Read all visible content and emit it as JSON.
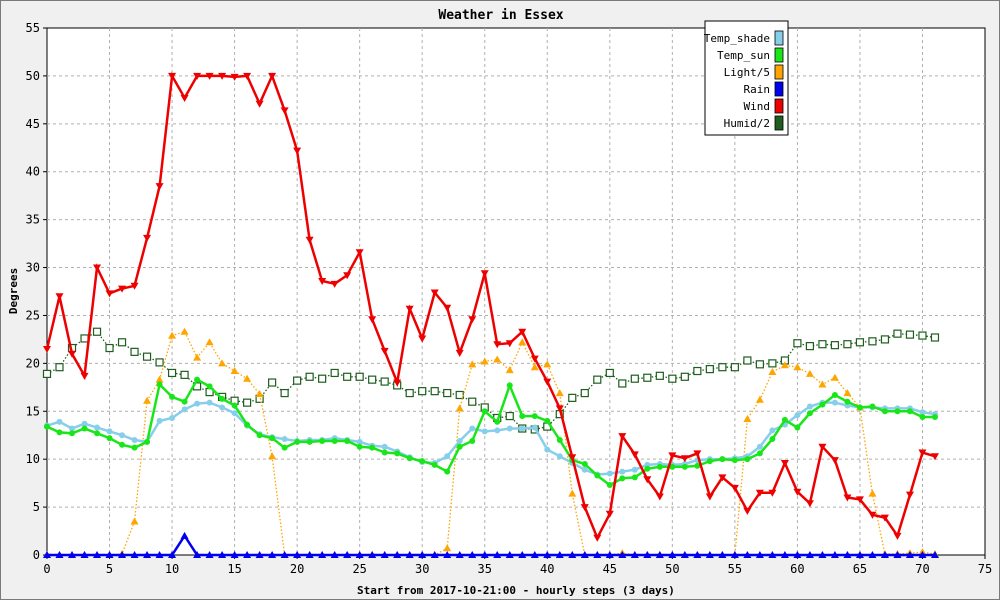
{
  "chart_data": {
    "type": "line",
    "title": "Weather in Essex",
    "xlabel": "Start from 2017-10-21:00 - hourly steps (3 days)",
    "ylabel": "Degrees",
    "xlim": [
      0,
      75
    ],
    "ylim": [
      0,
      55
    ],
    "xticks": [
      0,
      5,
      10,
      15,
      20,
      25,
      30,
      35,
      40,
      45,
      50,
      55,
      60,
      65,
      70,
      75
    ],
    "yticks": [
      0,
      5,
      10,
      15,
      20,
      25,
      30,
      35,
      40,
      45,
      50,
      55
    ],
    "grid": true,
    "legend_position": "top-right",
    "series": [
      {
        "name": "Temp_shade",
        "color": "#87ceeb",
        "marker": "circle",
        "line": "solid",
        "values": [
          13.5,
          13.9,
          13.2,
          13.7,
          13.3,
          12.9,
          12.5,
          12.0,
          11.8,
          14.0,
          14.3,
          15.2,
          15.8,
          15.9,
          15.4,
          14.8,
          13.5,
          12.6,
          12.3,
          12.1,
          11.9,
          12.0,
          12.0,
          12.2,
          12.0,
          11.8,
          11.4,
          11.3,
          10.8,
          10.2,
          9.7,
          9.6,
          10.3,
          11.9,
          13.2,
          12.9,
          13.0,
          13.2,
          13.2,
          13.3,
          11.0,
          10.3,
          9.6,
          8.9,
          8.4,
          8.5,
          8.7,
          8.9,
          9.4,
          9.5,
          9.4,
          9.5,
          9.9,
          10.0,
          10.0,
          10.1,
          10.3,
          11.3,
          13.0,
          13.6,
          14.6,
          15.5,
          15.9,
          15.9,
          15.6,
          15.4,
          15.4,
          15.3,
          15.3,
          15.3,
          14.9,
          14.7
        ]
      },
      {
        "name": "Temp_sun",
        "color": "#19e619",
        "marker": "circle",
        "line": "solid",
        "values": [
          13.4,
          12.8,
          12.7,
          13.2,
          12.7,
          12.2,
          11.5,
          11.2,
          11.8,
          17.8,
          16.5,
          16.0,
          18.3,
          17.6,
          16.3,
          15.6,
          13.6,
          12.5,
          12.2,
          11.2,
          11.8,
          11.8,
          11.9,
          11.9,
          11.9,
          11.3,
          11.2,
          10.7,
          10.6,
          10.1,
          9.8,
          9.4,
          8.7,
          11.3,
          11.9,
          15.0,
          13.9,
          17.7,
          14.5,
          14.5,
          14.0,
          12.0,
          9.9,
          9.5,
          8.3,
          7.3,
          8.0,
          8.1,
          9.0,
          9.2,
          9.2,
          9.2,
          9.3,
          9.8,
          10.0,
          9.9,
          10.0,
          10.6,
          12.1,
          14.1,
          13.3,
          14.8,
          15.7,
          16.7,
          16.0,
          15.4,
          15.5,
          15.0,
          15.0,
          15.0,
          14.4,
          14.4
        ]
      },
      {
        "name": "Light/5",
        "color": "#ffa500",
        "marker": "triangle",
        "line": "dotted",
        "values": [
          0,
          0,
          0,
          0,
          0,
          0,
          0.1,
          3.5,
          16.1,
          18.3,
          22.9,
          23.3,
          20.6,
          22.2,
          20.0,
          19.2,
          18.4,
          16.8,
          10.3,
          0,
          0,
          0,
          0,
          0,
          0,
          0,
          0,
          0,
          0,
          0,
          0,
          0,
          0.7,
          15.3,
          19.9,
          20.2,
          20.4,
          19.3,
          22.2,
          19.6,
          19.9,
          16.9,
          6.4,
          0,
          0,
          0,
          0.2,
          0,
          0,
          0,
          0,
          0,
          0,
          0,
          0,
          0,
          14.2,
          16.2,
          19.1,
          19.8,
          19.6,
          18.9,
          17.8,
          18.5,
          16.9,
          15.4,
          6.4,
          0.1,
          0.1,
          0.2,
          0.3,
          0.1
        ]
      },
      {
        "name": "Rain",
        "color": "#0000ee",
        "marker": "triangle",
        "line": "solid",
        "values": [
          0,
          0,
          0,
          0,
          0,
          0,
          0,
          0,
          0,
          0,
          0,
          2.0,
          0,
          0,
          0,
          0,
          0,
          0,
          0,
          0,
          0,
          0,
          0,
          0,
          0,
          0,
          0,
          0,
          0,
          0,
          0,
          0,
          0,
          0,
          0,
          0,
          0,
          0,
          0,
          0,
          0,
          0,
          0,
          0,
          0,
          0,
          0,
          0,
          0,
          0,
          0,
          0,
          0,
          0,
          0,
          0,
          0,
          0,
          0,
          0,
          0,
          0,
          0,
          0,
          0,
          0,
          0,
          0,
          0,
          0,
          0,
          0
        ]
      },
      {
        "name": "Wind",
        "color": "#ee0000",
        "marker": "triangle-down",
        "line": "solid",
        "values": [
          21.5,
          27.0,
          21.0,
          18.7,
          30.0,
          27.3,
          27.8,
          28.1,
          33.1,
          38.5,
          50.0,
          47.7,
          50.0,
          50.0,
          50.0,
          49.9,
          50.0,
          47.1,
          50.0,
          46.4,
          42.2,
          32.9,
          28.6,
          28.3,
          29.2,
          31.6,
          24.6,
          21.3,
          18.0,
          25.7,
          22.6,
          27.4,
          25.8,
          21.1,
          24.6,
          29.4,
          22.0,
          22.1,
          23.3,
          20.5,
          18.1,
          15.3,
          10.2,
          5.0,
          1.8,
          4.3,
          12.4,
          10.5,
          7.9,
          6.1,
          10.4,
          10.1,
          10.6,
          6.1,
          8.1,
          7.0,
          4.6,
          6.5,
          6.5,
          9.6,
          6.6,
          5.4,
          11.3,
          9.9,
          6.0,
          5.8,
          4.2,
          3.9,
          2.0,
          6.3,
          10.7,
          10.3
        ]
      },
      {
        "name": "Humid/2",
        "color": "#1e5e1e",
        "marker": "square",
        "line": "dotted",
        "values": [
          18.9,
          19.6,
          21.6,
          22.6,
          23.3,
          21.6,
          22.2,
          21.2,
          20.7,
          20.1,
          19.0,
          18.8,
          17.6,
          17.0,
          16.5,
          16.1,
          15.9,
          16.3,
          18.0,
          16.9,
          18.2,
          18.6,
          18.4,
          19.0,
          18.6,
          18.6,
          18.3,
          18.1,
          17.7,
          16.9,
          17.1,
          17.1,
          16.9,
          16.7,
          16.0,
          15.4,
          14.3,
          14.5,
          13.2,
          13.1,
          13.4,
          14.7,
          16.4,
          16.9,
          18.3,
          19.0,
          17.9,
          18.4,
          18.5,
          18.7,
          18.4,
          18.6,
          19.2,
          19.4,
          19.6,
          19.6,
          20.3,
          19.9,
          20.0,
          20.3,
          22.1,
          21.8,
          22.0,
          21.9,
          22.0,
          22.2,
          22.3,
          22.5,
          23.1,
          23.0,
          22.9,
          22.7
        ]
      }
    ]
  }
}
